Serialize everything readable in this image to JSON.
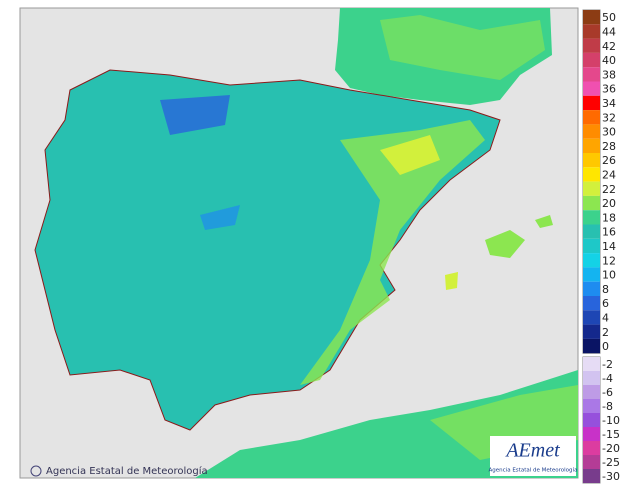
{
  "legend": {
    "items": [
      {
        "label": 50,
        "color": "#8c3c14"
      },
      {
        "label": 44,
        "color": "#a83a2a"
      },
      {
        "label": 42,
        "color": "#c03c48"
      },
      {
        "label": 40,
        "color": "#d4406a"
      },
      {
        "label": 38,
        "color": "#e4488c"
      },
      {
        "label": 36,
        "color": "#f050b0"
      },
      {
        "label": 34,
        "color": "#ff0000"
      },
      {
        "label": 32,
        "color": "#ff6a00"
      },
      {
        "label": 30,
        "color": "#ff8c00"
      },
      {
        "label": 28,
        "color": "#ffa500"
      },
      {
        "label": 26,
        "color": "#ffc800"
      },
      {
        "label": 24,
        "color": "#ffe600"
      },
      {
        "label": 22,
        "color": "#d2f03c"
      },
      {
        "label": 20,
        "color": "#8ce650"
      },
      {
        "label": 18,
        "color": "#3cd28c"
      },
      {
        "label": 16,
        "color": "#28c0b0"
      },
      {
        "label": 14,
        "color": "#1ec8c8"
      },
      {
        "label": 12,
        "color": "#14d2e6"
      },
      {
        "label": 10,
        "color": "#14b4f0"
      },
      {
        "label": 8,
        "color": "#1e8cf0"
      },
      {
        "label": 6,
        "color": "#2864dc"
      },
      {
        "label": 4,
        "color": "#1e46b4"
      },
      {
        "label": 2,
        "color": "#14288c"
      },
      {
        "label": 0,
        "color": "#0a1464"
      }
    ],
    "negative_items": [
      {
        "label": -2,
        "color": "#e6dcf5"
      },
      {
        "label": -4,
        "color": "#d2c3f0"
      },
      {
        "label": -6,
        "color": "#be9be6"
      },
      {
        "label": -8,
        "color": "#aa78e6"
      },
      {
        "label": -10,
        "color": "#9650dc"
      },
      {
        "label": -15,
        "color": "#c832c8"
      },
      {
        "label": -20,
        "color": "#dc3ca0"
      },
      {
        "label": -25,
        "color": "#b43c96"
      },
      {
        "label": -30,
        "color": "#783c8c"
      }
    ]
  },
  "credit": "Agencia Estatal de Meteorología",
  "logo": {
    "name": "AEmet",
    "subtitle": "Agencia Estatal de Meteorología"
  }
}
